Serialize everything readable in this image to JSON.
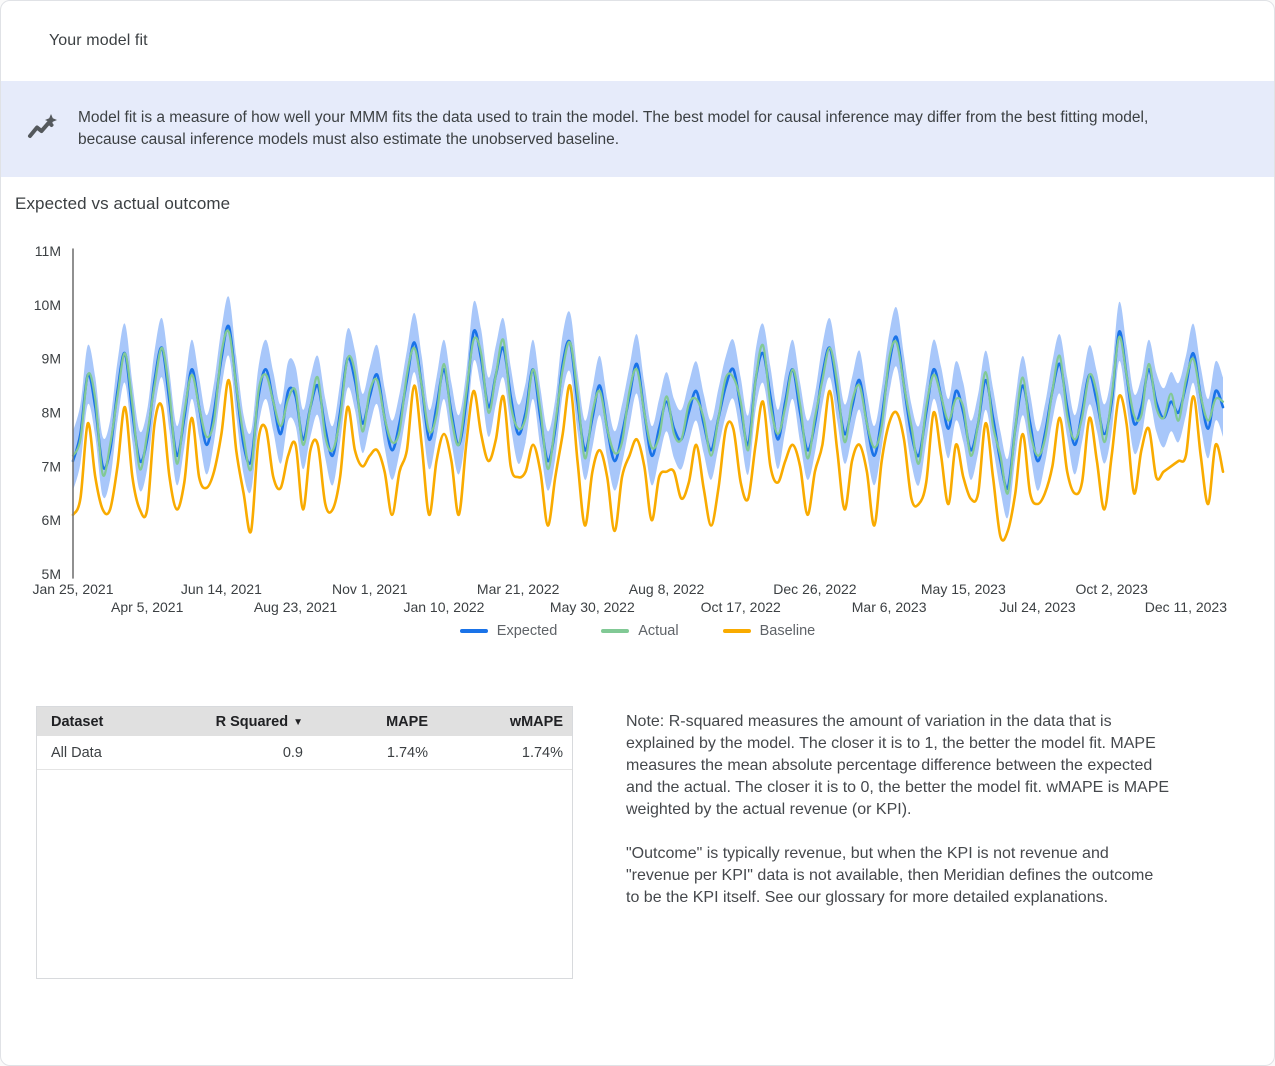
{
  "header": {
    "title": "Your model fit"
  },
  "banner": {
    "icon": "insights-icon",
    "text": "Model fit is a measure of how well your MMM fits the data used to train the model. The best model for causal inference may differ from the best fitting model, because causal inference models must also estimate the unobserved baseline."
  },
  "section": {
    "title": "Expected vs actual outcome"
  },
  "chart_data": {
    "type": "line",
    "title": "Expected vs actual outcome",
    "x_unit": "weeks",
    "x_tick_labels": [
      "Jan 25, 2021",
      "Apr 5, 2021",
      "Jun 14, 2021",
      "Aug 23, 2021",
      "Nov 1, 2021",
      "Jan 10, 2022",
      "Mar 21, 2022",
      "May 30, 2022",
      "Aug 8, 2022",
      "Oct 17, 2022",
      "Dec 26, 2022",
      "Mar 6, 2023",
      "May 15, 2023",
      "Jul 24, 2023",
      "Oct 2, 2023",
      "Dec 11, 2023"
    ],
    "x_tick_weeks": [
      0,
      10,
      20,
      30,
      40,
      50,
      60,
      70,
      80,
      90,
      100,
      110,
      120,
      130,
      140,
      150
    ],
    "y_tick_labels": [
      "5M",
      "6M",
      "7M",
      "8M",
      "9M",
      "10M",
      "11M"
    ],
    "y_range_millions": [
      5,
      11
    ],
    "grid": false,
    "legend_position": "bottom",
    "band_color": "#a8c7fa",
    "ci_halfwidth_millions": 0.55,
    "series": [
      {
        "name": "Expected",
        "color": "#1a73e8",
        "values_millions": [
          7.1,
          7.6,
          8.7,
          8.1,
          7.0,
          7.3,
          8.4,
          9.1,
          8.0,
          7.1,
          7.5,
          8.6,
          9.2,
          8.2,
          7.2,
          7.9,
          8.8,
          8.1,
          7.4,
          8.0,
          9.0,
          9.6,
          8.5,
          7.4,
          7.1,
          8.3,
          8.8,
          8.2,
          7.6,
          8.4,
          8.3,
          7.5,
          8.1,
          8.5,
          7.7,
          7.2,
          8.0,
          9.0,
          8.6,
          7.8,
          8.3,
          8.7,
          7.9,
          7.3,
          7.8,
          8.6,
          9.3,
          8.5,
          7.5,
          8.1,
          8.8,
          8.0,
          7.4,
          8.2,
          9.5,
          9.0,
          8.1,
          8.7,
          9.2,
          8.3,
          7.6,
          8.0,
          8.8,
          7.9,
          7.1,
          7.7,
          8.9,
          9.3,
          8.2,
          7.3,
          7.9,
          8.5,
          7.7,
          7.1,
          7.6,
          8.3,
          8.9,
          8.0,
          7.2,
          7.7,
          8.2,
          7.7,
          7.5,
          8.0,
          8.4,
          7.8,
          7.3,
          7.9,
          8.5,
          8.8,
          8.1,
          7.4,
          8.6,
          9.1,
          8.3,
          7.5,
          8.2,
          8.8,
          8.0,
          7.3,
          7.8,
          8.7,
          9.2,
          8.4,
          7.6,
          8.1,
          8.6,
          7.8,
          7.2,
          7.9,
          8.9,
          9.4,
          8.5,
          7.6,
          7.2,
          8.0,
          8.8,
          8.3,
          7.7,
          8.4,
          8.0,
          7.3,
          7.8,
          8.6,
          7.9,
          7.1,
          6.6,
          7.7,
          8.5,
          7.8,
          7.1,
          7.6,
          8.4,
          8.9,
          8.1,
          7.4,
          8.0,
          8.7,
          8.2,
          7.6,
          8.2,
          9.5,
          8.7,
          7.8,
          8.1,
          8.8,
          8.2,
          7.9,
          8.2,
          8.0,
          8.5,
          9.1,
          8.3,
          7.7,
          8.4,
          8.1
        ]
      },
      {
        "name": "Actual",
        "color": "#81c995",
        "values_millions": [
          7.2,
          7.5,
          8.7,
          8.25,
          6.85,
          7.4,
          8.3,
          9.1,
          8.15,
          6.95,
          7.6,
          8.5,
          9.2,
          8.35,
          7.05,
          8.0,
          8.7,
          8.1,
          7.55,
          7.85,
          9.1,
          9.5,
          8.5,
          7.55,
          6.95,
          8.4,
          8.7,
          8.2,
          7.75,
          8.25,
          8.4,
          7.4,
          8.1,
          8.65,
          7.55,
          7.3,
          7.9,
          9.0,
          8.75,
          7.65,
          8.4,
          8.6,
          7.9,
          7.45,
          7.65,
          8.7,
          9.2,
          8.5,
          7.65,
          7.95,
          8.9,
          7.9,
          7.4,
          8.35,
          9.35,
          9.1,
          8.0,
          8.7,
          9.35,
          8.15,
          7.7,
          7.9,
          8.8,
          8.05,
          6.95,
          7.8,
          8.8,
          9.3,
          8.35,
          7.15,
          8.0,
          8.4,
          7.7,
          7.25,
          7.45,
          8.4,
          8.8,
          8.0,
          7.35,
          7.55,
          8.3,
          7.6,
          7.5,
          8.15,
          8.25,
          7.9,
          7.2,
          7.9,
          8.65,
          8.65,
          8.2,
          7.3,
          8.6,
          9.25,
          8.15,
          7.6,
          8.1,
          8.8,
          8.15,
          7.15,
          7.9,
          8.6,
          9.2,
          8.55,
          7.45,
          8.2,
          8.5,
          7.8,
          7.35,
          7.75,
          9.0,
          9.3,
          8.5,
          7.75,
          7.05,
          8.1,
          8.7,
          8.3,
          7.85,
          8.25,
          8.1,
          7.2,
          7.8,
          8.75,
          7.75,
          7.2,
          6.5,
          7.7,
          8.65,
          7.65,
          7.2,
          7.5,
          8.4,
          9.05,
          7.95,
          7.5,
          7.9,
          8.7,
          8.35,
          7.45,
          8.3,
          9.4,
          8.7,
          7.95,
          7.95,
          8.9,
          8.1,
          7.9,
          8.35,
          7.85,
          8.6,
          9.0,
          8.3,
          7.85,
          8.25,
          8.2
        ]
      },
      {
        "name": "Baseline",
        "color": "#f9ab00",
        "values_millions": [
          6.1,
          6.4,
          7.8,
          6.8,
          6.2,
          6.2,
          7.0,
          8.1,
          6.8,
          6.2,
          6.2,
          7.8,
          8.1,
          6.8,
          6.2,
          6.7,
          7.9,
          6.8,
          6.6,
          6.9,
          7.6,
          8.6,
          7.3,
          6.5,
          5.8,
          7.5,
          7.7,
          6.8,
          6.6,
          7.2,
          7.4,
          6.2,
          7.3,
          7.4,
          6.3,
          6.2,
          6.8,
          8.1,
          7.3,
          7.0,
          7.2,
          7.3,
          6.9,
          6.1,
          6.9,
          7.3,
          8.5,
          7.4,
          6.1,
          7.1,
          7.6,
          7.1,
          6.1,
          7.4,
          8.4,
          7.6,
          7.1,
          7.5,
          8.3,
          7.0,
          6.8,
          6.9,
          7.4,
          6.9,
          5.9,
          6.8,
          7.6,
          8.5,
          7.1,
          5.9,
          6.9,
          7.3,
          6.8,
          5.8,
          6.8,
          7.2,
          7.5,
          7.0,
          6.0,
          6.8,
          6.9,
          6.9,
          6.4,
          6.7,
          7.4,
          6.6,
          5.9,
          6.6,
          7.7,
          7.7,
          6.7,
          6.4,
          7.4,
          8.2,
          7.0,
          6.7,
          7.1,
          7.4,
          7.0,
          6.1,
          6.9,
          7.4,
          8.4,
          7.3,
          6.2,
          7.1,
          7.4,
          6.9,
          5.9,
          7.1,
          7.8,
          8.0,
          7.5,
          6.4,
          6.3,
          6.7,
          8.0,
          7.2,
          6.3,
          7.4,
          6.8,
          6.4,
          6.5,
          7.8,
          6.8,
          5.7,
          5.8,
          6.5,
          7.6,
          6.5,
          6.3,
          6.5,
          7.0,
          7.9,
          6.9,
          6.5,
          6.7,
          7.9,
          7.1,
          6.2,
          7.2,
          8.3,
          7.8,
          6.5,
          7.3,
          7.7,
          6.8,
          6.9,
          7.0,
          7.1,
          7.2,
          8.3,
          7.2,
          6.3,
          7.4,
          6.9
        ]
      }
    ]
  },
  "table": {
    "headers": [
      {
        "label": "Dataset",
        "sortable": false
      },
      {
        "label": "R Squared",
        "sortable": true
      },
      {
        "label": "MAPE",
        "sortable": false
      },
      {
        "label": "wMAPE",
        "sortable": false
      }
    ],
    "rows": [
      {
        "cells": [
          "All Data",
          "0.9",
          "1.74%",
          "1.74%"
        ]
      }
    ]
  },
  "note": {
    "p1": "Note: R-squared measures the amount of variation in the data that is explained by the model. The closer it is to 1, the better the model fit. MAPE measures the mean absolute percentage difference between the expected and the actual. The closer it is to 0, the better the model fit. wMAPE is MAPE weighted by the actual revenue (or KPI).",
    "p2": "\"Outcome\" is typically revenue, but when the KPI is not revenue and \"revenue per KPI\" data is not available, then Meridian defines the outcome to be the KPI itself. See our glossary for more detailed explanations."
  },
  "colors": {
    "banner_bg": "#e6ebfa",
    "expected": "#1a73e8",
    "actual": "#81c995",
    "baseline": "#f9ab00",
    "confidence_band": "#a8c7fa",
    "table_header_bg": "#e0e0e0"
  }
}
